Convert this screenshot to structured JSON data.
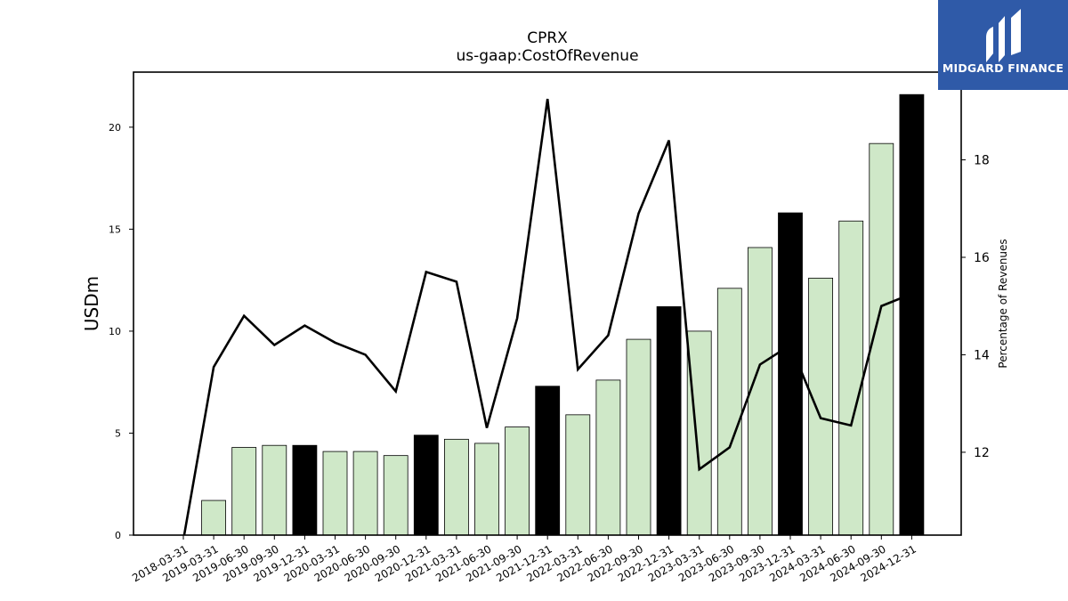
{
  "chart_data": {
    "type": "bar",
    "title": "CPRX",
    "subtitle": "us-gaap:CostOfRevenue",
    "ylabel": "USDm",
    "y2label": "Percentage of Revenues",
    "ylim": [
      0,
      22.7
    ],
    "y2lim": [
      10.3,
      19.8
    ],
    "yticks": [
      0,
      5,
      10,
      15,
      20
    ],
    "y2ticks": [
      12,
      14,
      16,
      18
    ],
    "categories": [
      "2018-03-31",
      "2019-03-31",
      "2019-06-30",
      "2019-09-30",
      "2019-12-31",
      "2020-03-31",
      "2020-06-30",
      "2020-09-30",
      "2020-12-31",
      "2021-03-31",
      "2021-06-30",
      "2021-09-30",
      "2021-12-31",
      "2022-03-31",
      "2022-06-30",
      "2022-09-30",
      "2022-12-31",
      "2023-03-31",
      "2023-06-30",
      "2023-09-30",
      "2023-12-31",
      "2024-03-31",
      "2024-06-30",
      "2024-09-30",
      "2024-12-31"
    ],
    "series": [
      {
        "type": "bar",
        "values": [
          null,
          1.7,
          4.3,
          4.4,
          4.4,
          4.1,
          4.1,
          3.9,
          4.9,
          4.7,
          4.5,
          5.3,
          7.3,
          5.9,
          7.6,
          9.6,
          11.2,
          10.0,
          12.1,
          14.1,
          15.8,
          12.6,
          15.4,
          19.2,
          21.6
        ]
      },
      {
        "type": "line",
        "axis": "right",
        "values": [
          10.2,
          13.75,
          14.8,
          14.2,
          14.6,
          14.25,
          14.0,
          13.25,
          15.7,
          15.5,
          12.5,
          14.75,
          19.25,
          13.7,
          14.4,
          16.9,
          18.4,
          11.65,
          12.1,
          13.8,
          14.2,
          12.7,
          12.55,
          15.0,
          15.25
        ]
      }
    ],
    "bar_colors": {
      "quarter": "#cfe8c8",
      "year_end": "#000000"
    },
    "line_color": "#000000",
    "grid": false,
    "legend": "none"
  },
  "brand": {
    "name": "MIDGARD FINANCE",
    "color": "#2f5aa8",
    "icon": "midgard-logo-icon"
  }
}
